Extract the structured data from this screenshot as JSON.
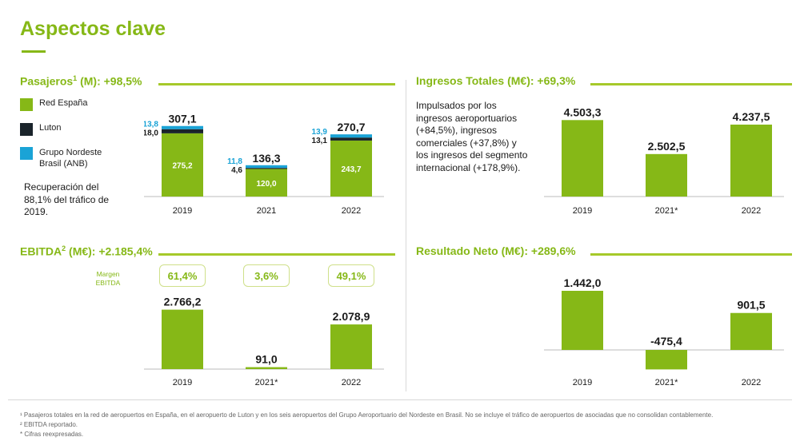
{
  "page": {
    "title": "Aspectos clave"
  },
  "passengers": {
    "heading": "Pasajeros",
    "heading_sup": "1",
    "heading_tail": " (M): +98,5%",
    "legend": [
      {
        "label": "Red España",
        "color": "#86b817"
      },
      {
        "label": "Luton",
        "color": "#1a242b"
      },
      {
        "label": "Grupo Nordeste Brasil (ANB)",
        "color": "#1aa3d6"
      }
    ],
    "note": "Recuperación del 88,1% del tráfico de 2019."
  },
  "revenue": {
    "heading": "Ingresos Totales (M€): +69,3%",
    "note": "Impulsados por los ingresos aeroportuarios (+84,5%), ingresos comerciales (+37,8%) y los ingresos del segmento internacional (+178,9%)."
  },
  "ebitda": {
    "heading": "EBITDA",
    "heading_sup": "2",
    "heading_tail": " (M€): +2.185,4%",
    "margin_label": "Margen EBITDA",
    "margins": [
      "61,4%",
      "3,6%",
      "49,1%"
    ]
  },
  "net": {
    "heading": "Resultado Neto (M€): +289,6%"
  },
  "footnotes": [
    "¹ Pasajeros totales en la red de aeropuertos en España, en el aeropuerto de Luton y en los seis aeropuertos del Grupo Aeroportuario del Nordeste en Brasil. No se incluye el tráfico de aeropuertos de asociadas que no consolidan contablemente.",
    "² EBITDA reportado.",
    "* Cifras reexpresadas."
  ],
  "colors": {
    "accent": "#86b817",
    "luton": "#1a242b",
    "anb": "#1aa3d6"
  },
  "chart_data": [
    {
      "id": "passengers",
      "type": "bar",
      "stacked": true,
      "categories": [
        "2019",
        "2021",
        "2022"
      ],
      "series": [
        {
          "name": "Red España",
          "values": [
            275.2,
            120.0,
            243.7
          ],
          "labels": [
            "275,2",
            "120,0",
            "243,7"
          ]
        },
        {
          "name": "Luton",
          "values": [
            18.0,
            4.6,
            13.1
          ],
          "labels": [
            "18,0",
            "4,6",
            "13,1"
          ]
        },
        {
          "name": "Grupo Nordeste Brasil (ANB)",
          "values": [
            13.8,
            11.8,
            13.9
          ],
          "labels": [
            "13,8",
            "11,8",
            "13,9"
          ]
        }
      ],
      "totals": [
        "307,1",
        "136,3",
        "270,7"
      ],
      "ylim": [
        0,
        320
      ]
    },
    {
      "id": "revenue",
      "type": "bar",
      "categories": [
        "2019",
        "2021*",
        "2022"
      ],
      "values": [
        4503.3,
        2502.5,
        4237.5
      ],
      "labels": [
        "4.503,3",
        "2.502,5",
        "4.237,5"
      ],
      "ylim": [
        0,
        4800
      ]
    },
    {
      "id": "ebitda",
      "type": "bar",
      "categories": [
        "2019",
        "2021*",
        "2022"
      ],
      "values": [
        2766.2,
        91.0,
        2078.9
      ],
      "labels": [
        "2.766,2",
        "91,0",
        "2.078,9"
      ],
      "ylim": [
        0,
        2900
      ]
    },
    {
      "id": "net",
      "type": "bar",
      "categories": [
        "2019",
        "2021*",
        "2022"
      ],
      "values": [
        1442.0,
        -475.4,
        901.5
      ],
      "labels": [
        "1.442,0",
        "-475,4",
        "901,5"
      ],
      "ylim": [
        -500,
        1600
      ]
    }
  ]
}
